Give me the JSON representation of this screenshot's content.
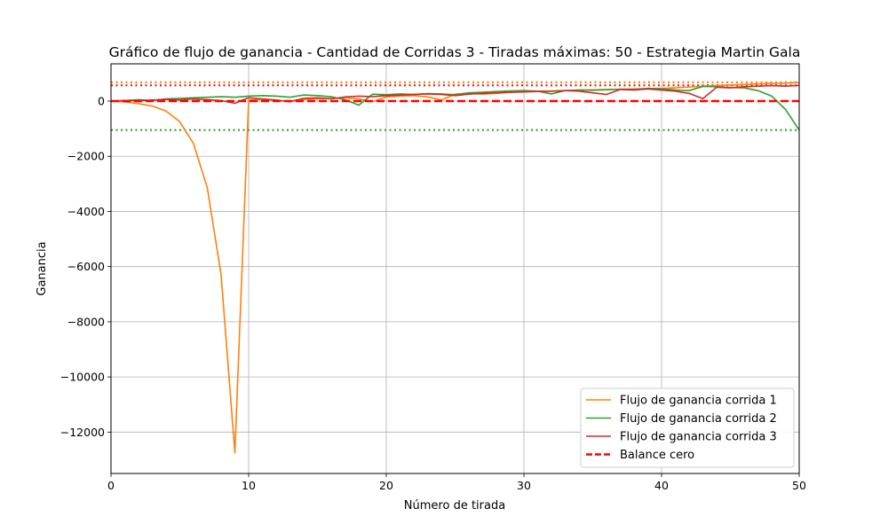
{
  "chart_data": {
    "type": "line",
    "title": "Gráfico de flujo de ganancia - Cantidad de Corridas 3 - Tiradas máximas: 50 - Estrategia Martin Gala",
    "xlabel": "Número de tirada",
    "ylabel": "Ganancia",
    "xlim": [
      0,
      50
    ],
    "ylim": [
      -13500,
      1350
    ],
    "grid": true,
    "legend_position": "bottom-right",
    "x_ticks": [
      0,
      10,
      20,
      30,
      40,
      50
    ],
    "x_tick_labels": [
      "0",
      "10",
      "20",
      "30",
      "40",
      "50"
    ],
    "y_ticks": [
      0,
      -2000,
      -4000,
      -6000,
      -8000,
      -10000,
      -12000
    ],
    "y_tick_labels": [
      "0",
      "−2000",
      "−4000",
      "−6000",
      "−8000",
      "−10000",
      "−12000"
    ],
    "series": [
      {
        "name": "Flujo de ganancia corrida 1",
        "color": "#ff7f0e",
        "x": [
          0,
          1,
          2,
          3,
          4,
          5,
          6,
          7,
          8,
          9,
          10,
          11,
          12,
          13,
          14,
          15,
          16,
          17,
          18,
          19,
          20,
          21,
          22,
          23,
          24,
          25,
          26,
          27,
          28,
          29,
          30,
          31,
          32,
          33,
          34,
          35,
          36,
          37,
          38,
          39,
          40,
          41,
          42,
          43,
          44,
          45,
          46,
          47,
          48,
          49,
          50
        ],
        "values": [
          0,
          -30,
          -90,
          -180,
          -360,
          -750,
          -1550,
          -3150,
          -6300,
          -12750,
          30,
          60,
          20,
          -20,
          60,
          80,
          100,
          120,
          80,
          -20,
          150,
          180,
          200,
          150,
          40,
          250,
          280,
          250,
          280,
          320,
          350,
          360,
          360,
          380,
          400,
          410,
          420,
          430,
          440,
          450,
          460,
          480,
          510,
          540,
          560,
          580,
          600,
          620,
          640,
          650,
          670
        ],
        "mean": 680,
        "mean_label": ""
      },
      {
        "name": "Flujo de ganancia corrida 2",
        "color": "#2ca02c",
        "x": [
          0,
          1,
          2,
          3,
          4,
          5,
          6,
          7,
          8,
          9,
          10,
          11,
          12,
          13,
          14,
          15,
          16,
          17,
          18,
          19,
          20,
          21,
          22,
          23,
          24,
          25,
          26,
          27,
          28,
          29,
          30,
          31,
          32,
          33,
          34,
          35,
          36,
          37,
          38,
          39,
          40,
          41,
          42,
          43,
          44,
          45,
          46,
          47,
          48,
          49,
          50
        ],
        "values": [
          0,
          20,
          50,
          20,
          80,
          100,
          120,
          140,
          160,
          140,
          180,
          200,
          180,
          140,
          220,
          200,
          160,
          50,
          -150,
          250,
          230,
          260,
          240,
          270,
          260,
          230,
          300,
          320,
          350,
          370,
          380,
          360,
          260,
          380,
          400,
          390,
          410,
          430,
          420,
          460,
          440,
          400,
          380,
          530,
          520,
          490,
          480,
          380,
          180,
          -300,
          -1050
        ],
        "mean": -1050,
        "mean_label": ""
      },
      {
        "name": "Flujo de ganancia corrida 3",
        "color": "#d62728",
        "x": [
          0,
          1,
          2,
          3,
          4,
          5,
          6,
          7,
          8,
          9,
          10,
          11,
          12,
          13,
          14,
          15,
          16,
          17,
          18,
          19,
          20,
          21,
          22,
          23,
          24,
          25,
          26,
          27,
          28,
          29,
          30,
          31,
          32,
          33,
          34,
          35,
          36,
          37,
          38,
          39,
          40,
          41,
          42,
          43,
          44,
          45,
          46,
          47,
          48,
          49,
          50
        ],
        "values": [
          0,
          20,
          10,
          40,
          60,
          40,
          80,
          50,
          20,
          -80,
          120,
          80,
          40,
          -20,
          100,
          120,
          80,
          150,
          180,
          160,
          200,
          220,
          240,
          260,
          240,
          200,
          250,
          280,
          300,
          320,
          330,
          350,
          360,
          380,
          360,
          300,
          240,
          420,
          400,
          440,
          400,
          360,
          280,
          90,
          500,
          480,
          520,
          540,
          560,
          540,
          570
        ],
        "mean": 570,
        "mean_label": ""
      }
    ],
    "reference_line": {
      "name": "Balance cero",
      "value": 0,
      "color": "#ff0000",
      "style": "dashed"
    }
  }
}
